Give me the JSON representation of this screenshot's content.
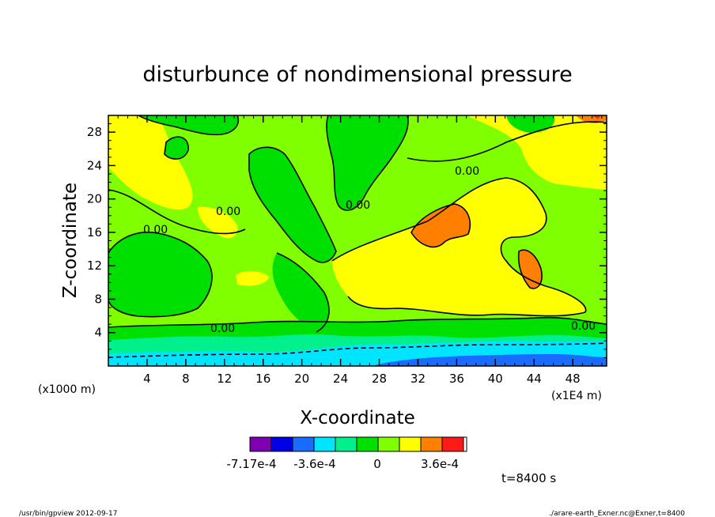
{
  "chart_data": {
    "type": "heatmap",
    "title": "disturbunce of nondimensional pressure",
    "xlabel": "X-coordinate",
    "ylabel": "Z-coordinate",
    "x_unit": "(x1E4 m)",
    "y_unit": "(x1000 m)",
    "xlim": [
      0,
      51.5
    ],
    "ylim": [
      0,
      30
    ],
    "x_ticks": [
      4,
      8,
      12,
      16,
      20,
      24,
      28,
      32,
      36,
      40,
      44,
      48
    ],
    "y_ticks": [
      4,
      8,
      12,
      16,
      20,
      24,
      28
    ],
    "contour_label": "0.00",
    "colorbar": {
      "colors": [
        "#7f00b2",
        "#0000e6",
        "#1a6bff",
        "#00e5ff",
        "#00f08c",
        "#00e000",
        "#7fff00",
        "#ffff00",
        "#ff7f00",
        "#ff1a1a"
      ],
      "tick_labels": [
        "-7.17e-4",
        "-3.6e-4",
        "0",
        "3.6e-4"
      ]
    },
    "time_label": "t=8400 s"
  },
  "footer": {
    "left": "/usr/bin/gpview   2012-09-17",
    "right": "./arare-earth_Exner.nc@Exner,t=8400"
  }
}
